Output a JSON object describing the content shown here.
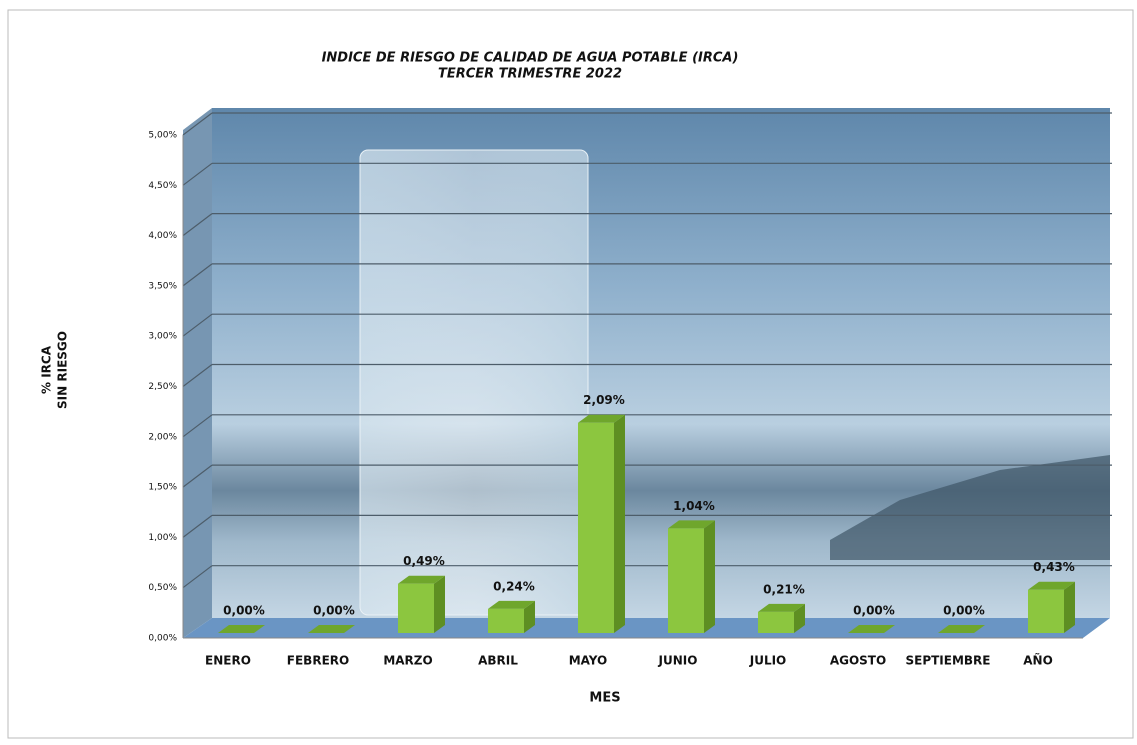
{
  "chart_data": {
    "type": "bar3d",
    "title": [
      "INDICE DE RIESGO DE CALIDAD DE AGUA POTABLE (IRCA)",
      "TERCER TRIMESTRE 2022"
    ],
    "y_label": [
      "% IRCA",
      "SIN RIESGO"
    ],
    "x_label": "MES",
    "categories": [
      "ENERO",
      "FEBRERO",
      "MARZO",
      "ABRIL",
      "MAYO",
      "JUNIO",
      "JULIO",
      "AGOSTO",
      "SEPTIEMBRE",
      "AÑO"
    ],
    "values": [
      0,
      0,
      0.49,
      0.24,
      2.09,
      1.04,
      0.21,
      0,
      0,
      0.43
    ],
    "value_labels": [
      "0,00%",
      "0,00%",
      "0,49%",
      "0,24%",
      "2,09%",
      "1,04%",
      "0,21%",
      "0,00%",
      "0,00%",
      "0,43%"
    ],
    "color": "#8cc63f",
    "ylim": [
      0,
      5
    ],
    "yticks": [
      {
        "value": 0,
        "label": "0,00%"
      },
      {
        "value": 0.5,
        "label": "0,50%"
      },
      {
        "value": 1,
        "label": "1,00%"
      },
      {
        "value": 1.5,
        "label": "1,50%"
      },
      {
        "value": 2,
        "label": "2,00%"
      },
      {
        "value": 2.5,
        "label": "2,50%"
      },
      {
        "value": 3,
        "label": "3,00%"
      },
      {
        "value": 3.5,
        "label": "3,50%"
      },
      {
        "value": 4,
        "label": "4,00%"
      },
      {
        "value": 4.5,
        "label": "4,50%"
      },
      {
        "value": 5,
        "label": "5,00%"
      }
    ],
    "grid": true
  }
}
